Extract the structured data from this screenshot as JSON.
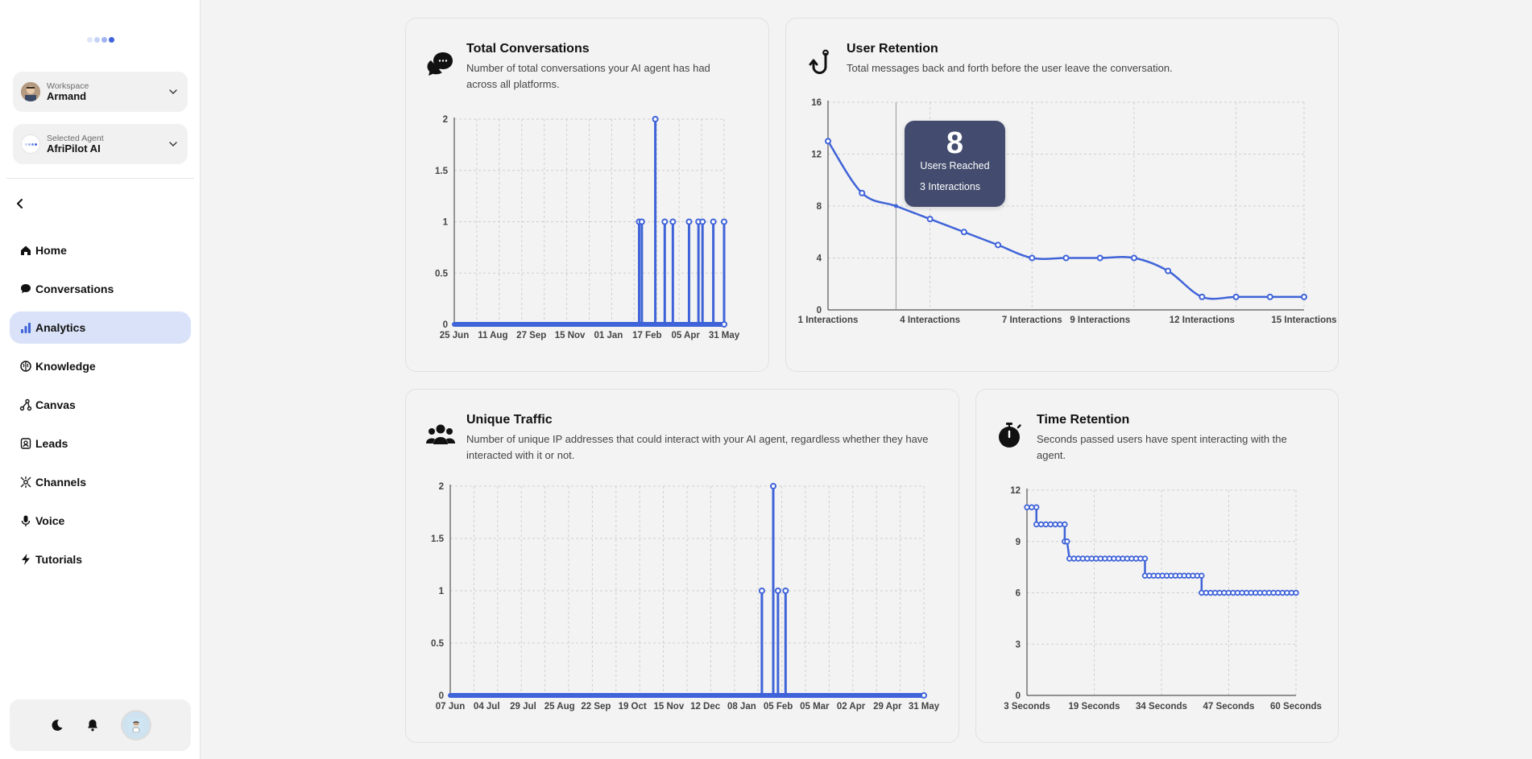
{
  "colors": {
    "accent": "#3f63d8",
    "active_nav": "#d9e2f8",
    "tooltip": "#434c6e"
  },
  "sidebar": {
    "workspace": {
      "caption": "Workspace",
      "value": "Armand",
      "icon": "chevron-down-icon"
    },
    "agent": {
      "caption": "Selected Agent",
      "value": "AfriPilot AI",
      "icon": "chevron-down-icon"
    },
    "collapse_icon": "chevron-left-icon",
    "items": [
      {
        "label": "Home",
        "icon": "home-icon"
      },
      {
        "label": "Conversations",
        "icon": "chat-bubble-icon"
      },
      {
        "label": "Analytics",
        "icon": "bar-chart-icon"
      },
      {
        "label": "Knowledge",
        "icon": "brain-icon"
      },
      {
        "label": "Canvas",
        "icon": "canvas-nodes-icon"
      },
      {
        "label": "Leads",
        "icon": "contact-icon"
      },
      {
        "label": "Channels",
        "icon": "channels-icon"
      },
      {
        "label": "Voice",
        "icon": "microphone-icon"
      },
      {
        "label": "Tutorials",
        "icon": "bolt-icon"
      }
    ],
    "active_item": "Analytics",
    "bottom": {
      "theme_icon": "moon-icon",
      "notifications_icon": "bell-icon",
      "avatar": "user-avatar"
    }
  },
  "cards": {
    "total_conversations": {
      "title": "Total Conversations",
      "description": "Number of total conversations your AI agent has had across all platforms.",
      "icon": "chat-bubbles-icon"
    },
    "user_retention": {
      "title": "User Retention",
      "description": "Total messages back and forth before the user leave the conversation.",
      "icon": "hook-icon",
      "tooltip": {
        "value": "8",
        "label": "Users Reached",
        "sublabel": "3 Interactions"
      }
    },
    "unique_traffic": {
      "title": "Unique Traffic",
      "description": "Number of unique IP addresses that could interact with your AI agent, regardless whether they have interacted with it or not.",
      "icon": "users-group-icon"
    },
    "time_retention": {
      "title": "Time Retention",
      "description": "Seconds passed users have spent interacting with the agent.",
      "icon": "stopwatch-icon"
    }
  },
  "chart_data": [
    {
      "id": "total_conversations",
      "type": "line",
      "title": "Total Conversations",
      "y_ticks": [
        "0",
        "0.5",
        "1",
        "1.5",
        "2"
      ],
      "ylim": [
        0,
        2
      ],
      "x_tick_labels": [
        "25 Jun",
        "11 Aug",
        "27 Sep",
        "15 Nov",
        "01 Jan",
        "17 Feb",
        "05 Apr",
        "31 May"
      ],
      "x_range": [
        0,
        100
      ],
      "spikes": [
        {
          "x": 68.5,
          "y": 1
        },
        {
          "x": 69.5,
          "y": 1
        },
        {
          "x": 74.5,
          "y": 2
        },
        {
          "x": 78.0,
          "y": 1
        },
        {
          "x": 81.0,
          "y": 1
        },
        {
          "x": 87.0,
          "y": 1
        },
        {
          "x": 90.5,
          "y": 1
        },
        {
          "x": 92.0,
          "y": 1
        },
        {
          "x": 96.0,
          "y": 1
        },
        {
          "x": 100,
          "y": 1
        }
      ]
    },
    {
      "id": "user_retention",
      "type": "line",
      "title": "User Retention",
      "y_ticks": [
        "0",
        "4",
        "8",
        "12",
        "16"
      ],
      "ylim": [
        0,
        16
      ],
      "x_tick_labels": [
        "1 Interactions",
        "4 Interactions",
        "7 Interactions",
        "9 Interactions",
        "12 Interactions",
        "15 Interactions"
      ],
      "x": [
        1,
        2,
        3,
        4,
        5,
        6,
        7,
        8,
        9,
        10,
        11,
        12,
        13,
        14,
        15
      ],
      "values": [
        13,
        9,
        8,
        7,
        6,
        5,
        4,
        4,
        4,
        4,
        3,
        1,
        1,
        1,
        1
      ],
      "highlight": {
        "x": 3,
        "y": 8
      }
    },
    {
      "id": "unique_traffic",
      "type": "line",
      "title": "Unique Traffic",
      "y_ticks": [
        "0",
        "0.5",
        "1",
        "1.5",
        "2"
      ],
      "ylim": [
        0,
        2
      ],
      "x_tick_labels": [
        "07 Jun",
        "04 Jul",
        "29 Jul",
        "25 Aug",
        "22 Sep",
        "19 Oct",
        "15 Nov",
        "12 Dec",
        "08 Jan",
        "05 Feb",
        "05 Mar",
        "02 Apr",
        "29 Apr",
        "31 May"
      ],
      "x_range": [
        0,
        100
      ],
      "spikes": [
        {
          "x": 65.8,
          "y": 1
        },
        {
          "x": 68.2,
          "y": 2
        },
        {
          "x": 69.2,
          "y": 1
        },
        {
          "x": 70.8,
          "y": 1
        }
      ]
    },
    {
      "id": "time_retention",
      "type": "line",
      "title": "Time Retention",
      "y_ticks": [
        "0",
        "3",
        "6",
        "9",
        "12"
      ],
      "ylim": [
        0,
        12
      ],
      "x_tick_labels": [
        "3 Seconds",
        "19 Seconds",
        "34 Seconds",
        "47 Seconds",
        "60 Seconds"
      ],
      "x_range": [
        3,
        60
      ],
      "steps": [
        {
          "from": 3,
          "to": 5,
          "y": 11
        },
        {
          "from": 5,
          "to": 11,
          "y": 10
        },
        {
          "from": 11,
          "to": 11.5,
          "y": 9
        },
        {
          "from": 12,
          "to": 28,
          "y": 8
        },
        {
          "from": 28,
          "to": 40,
          "y": 7
        },
        {
          "from": 40,
          "to": 60,
          "y": 6
        }
      ]
    }
  ]
}
